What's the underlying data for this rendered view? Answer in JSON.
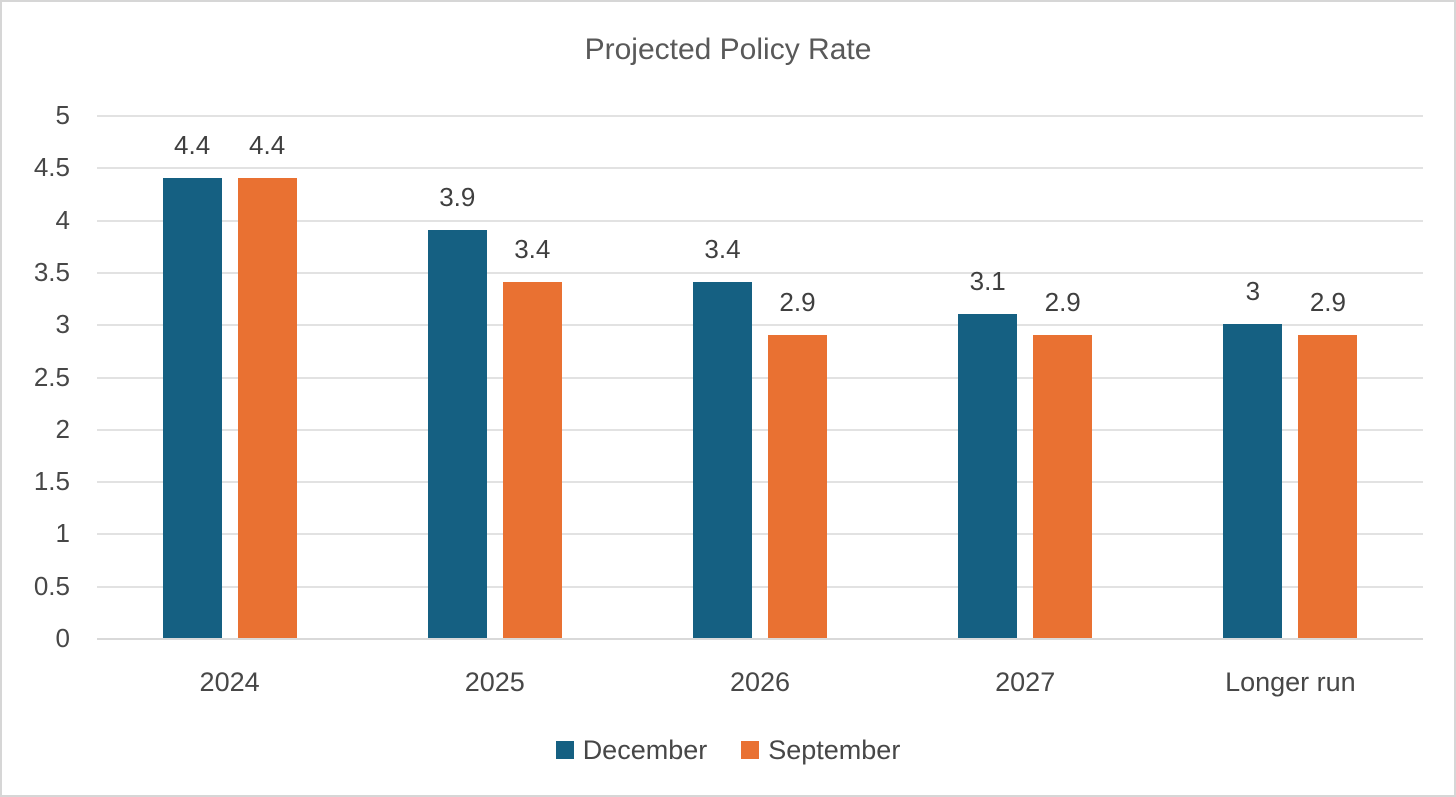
{
  "chart_data": {
    "type": "bar",
    "title": "Projected Policy Rate",
    "categories": [
      "2024",
      "2025",
      "2026",
      "2027",
      "Longer run"
    ],
    "series": [
      {
        "name": "December",
        "color": "#156082",
        "values": [
          4.4,
          3.9,
          3.4,
          3.1,
          3
        ]
      },
      {
        "name": "September",
        "color": "#E97132",
        "values": [
          4.4,
          3.4,
          2.9,
          2.9,
          2.9
        ]
      }
    ],
    "xlabel": "",
    "ylabel": "",
    "ylim": [
      0,
      5
    ],
    "ytick_step": 0.5,
    "yticks": [
      "0",
      "0.5",
      "1",
      "1.5",
      "2",
      "2.5",
      "3",
      "3.5",
      "4",
      "4.5",
      "5"
    ],
    "grid": true,
    "data_labels": true,
    "legend_position": "bottom",
    "colors": {
      "background": "#FFFFFF",
      "frame_border": "#D6D6D6",
      "gridline": "#E2E2E2",
      "axis_line": "#D9D9D9",
      "title_text": "#595959",
      "axis_text": "#474747",
      "data_label_text": "#3F3F3F"
    }
  }
}
